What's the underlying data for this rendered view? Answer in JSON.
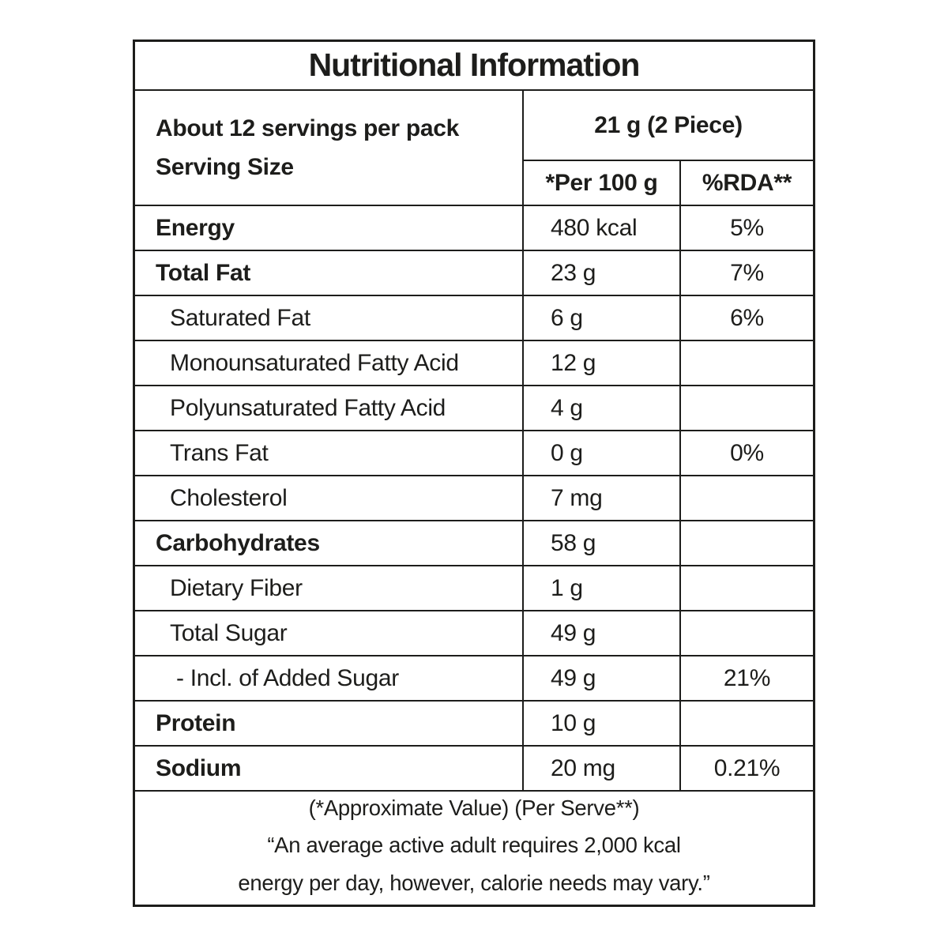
{
  "title": "Nutritional Information",
  "header": {
    "servings_per_pack": "About 12 servings per pack",
    "serving_size_label": "Serving Size",
    "serving_size_value": "21 g (2 Piece)",
    "col_per_100g": "*Per 100 g",
    "col_rda": "%RDA**"
  },
  "rows": [
    {
      "label": "Energy",
      "value": "480 kcal",
      "rda": "5%"
    },
    {
      "label": "Total Fat",
      "value": "23 g",
      "rda": "7%"
    },
    {
      "label": "Saturated Fat",
      "value": "6 g",
      "rda": "6%"
    },
    {
      "label": "Monounsaturated Fatty Acid",
      "value": "12 g",
      "rda": ""
    },
    {
      "label": "Polyunsaturated Fatty Acid",
      "value": "4 g",
      "rda": ""
    },
    {
      "label": "Trans Fat",
      "value": "0 g",
      "rda": "0%"
    },
    {
      "label": "Cholesterol",
      "value": "7 mg",
      "rda": ""
    },
    {
      "label": "Carbohydrates",
      "value": "58 g",
      "rda": ""
    },
    {
      "label": "Dietary Fiber",
      "value": "1 g",
      "rda": ""
    },
    {
      "label": "Total Sugar",
      "value": "49 g",
      "rda": ""
    },
    {
      "label": "- Incl. of Added Sugar",
      "value": "49 g",
      "rda": "21%"
    },
    {
      "label": "Protein",
      "value": "10 g",
      "rda": ""
    },
    {
      "label": "Sodium",
      "value": "20 mg",
      "rda": "0.21%"
    }
  ],
  "footer": {
    "line1": "(*Approximate Value) (Per Serve**)",
    "line2": "“An average active adult requires 2,000 kcal",
    "line3": "energy per day, however, calorie needs may vary.”"
  },
  "colors": {
    "text": "#1d1d1b",
    "border": "#1d1d1b",
    "background": "#ffffff"
  }
}
